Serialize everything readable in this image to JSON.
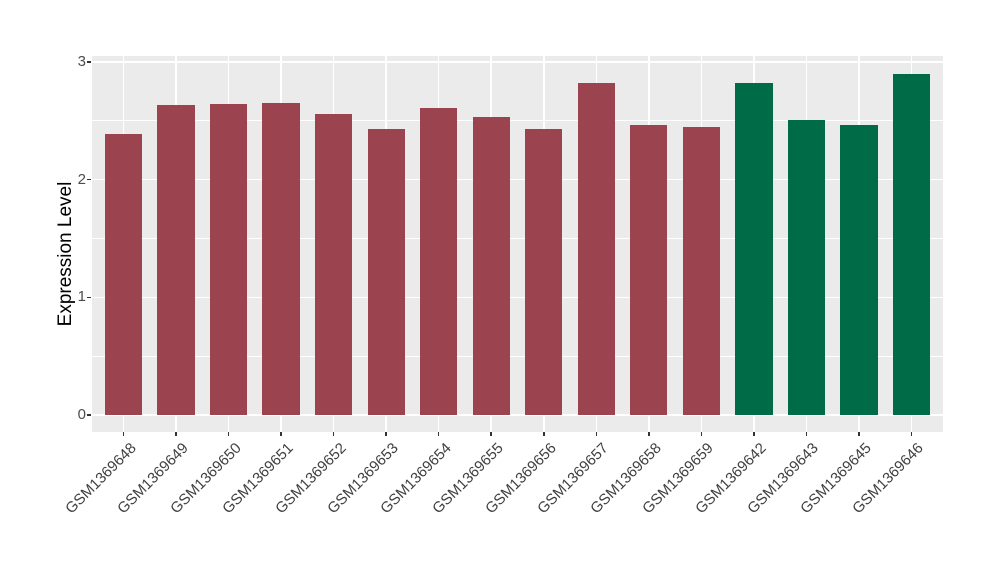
{
  "figure": {
    "background": "#FFFFFF",
    "panel_background": "#EBEBEB",
    "grid_color": "#FFFFFF",
    "tick_mark_color": "#333333",
    "axis_text_color": "#4D4D4D",
    "axis_title_color": "#000000"
  },
  "chart_data": {
    "type": "bar",
    "title": "",
    "xlabel": "",
    "ylabel": "Expression Level",
    "ylim": [
      -0.145,
      3.05
    ],
    "yticks": [
      0,
      1,
      2,
      3
    ],
    "yticks_minor": [
      0.5,
      1.5,
      2.5
    ],
    "grid": true,
    "legend_position": "none",
    "bar_width_ratio": 0.71,
    "group_colors": {
      "first_12_samples": "#9B434F",
      "last_4_samples": "#006B47"
    },
    "bars": [
      {
        "label": "GSM1369648",
        "value": 2.39,
        "color": "#9B434F"
      },
      {
        "label": "GSM1369649",
        "value": 2.63,
        "color": "#9B434F"
      },
      {
        "label": "GSM1369650",
        "value": 2.64,
        "color": "#9B434F"
      },
      {
        "label": "GSM1369651",
        "value": 2.65,
        "color": "#9B434F"
      },
      {
        "label": "GSM1369652",
        "value": 2.56,
        "color": "#9B434F"
      },
      {
        "label": "GSM1369653",
        "value": 2.43,
        "color": "#9B434F"
      },
      {
        "label": "GSM1369654",
        "value": 2.61,
        "color": "#9B434F"
      },
      {
        "label": "GSM1369655",
        "value": 2.53,
        "color": "#9B434F"
      },
      {
        "label": "GSM1369656",
        "value": 2.43,
        "color": "#9B434F"
      },
      {
        "label": "GSM1369657",
        "value": 2.82,
        "color": "#9B434F"
      },
      {
        "label": "GSM1369658",
        "value": 2.46,
        "color": "#9B434F"
      },
      {
        "label": "GSM1369659",
        "value": 2.45,
        "color": "#9B434F"
      },
      {
        "label": "GSM1369642",
        "value": 2.82,
        "color": "#006B47"
      },
      {
        "label": "GSM1369643",
        "value": 2.51,
        "color": "#006B47"
      },
      {
        "label": "GSM1369645",
        "value": 2.46,
        "color": "#006B47"
      },
      {
        "label": "GSM1369646",
        "value": 2.9,
        "color": "#006B47"
      }
    ]
  }
}
